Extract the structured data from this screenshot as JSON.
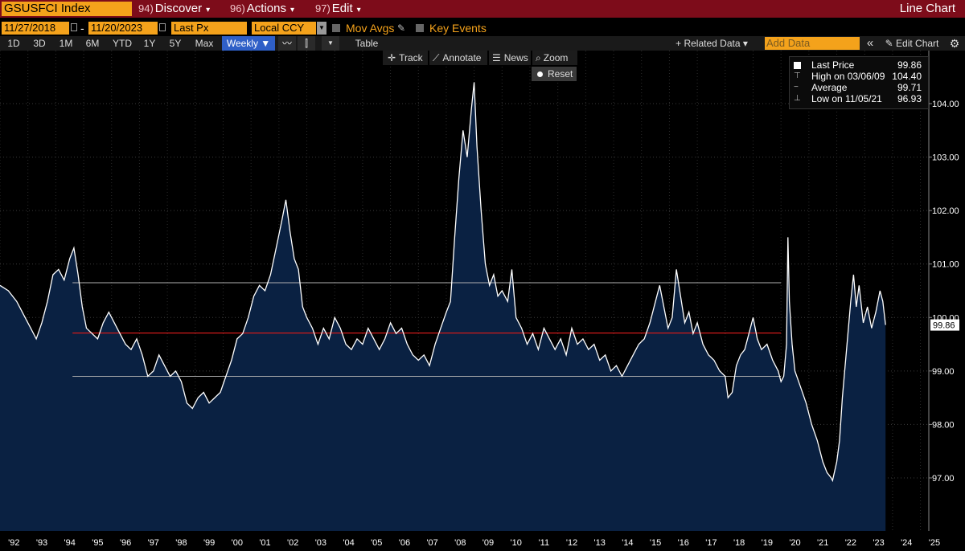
{
  "header": {
    "ticker": "GSUSFCI Index",
    "menus": [
      {
        "num": "94)",
        "label": "Discover"
      },
      {
        "num": "96)",
        "label": "Actions"
      },
      {
        "num": "97)",
        "label": "Edit"
      }
    ],
    "chart_type_label": "Line Chart"
  },
  "controls": {
    "start_date": "11/27/2018",
    "end_date": "11/20/2023",
    "date_sep": "-",
    "field": "Last Px",
    "currency": "Local CCY",
    "mov_avgs": "Mov Avgs",
    "key_events": "Key Events"
  },
  "toolbar": {
    "periods": [
      "1D",
      "3D",
      "1M",
      "6M",
      "YTD",
      "1Y",
      "5Y",
      "Max"
    ],
    "frequency": "Weekly ▼",
    "table": "Table",
    "related_data": "+ Related Data ▾",
    "add_data_placeholder": "Add Data",
    "collapse": "«",
    "edit_chart": "Edit Chart",
    "track": "Track",
    "annotate": "Annotate",
    "news": "News",
    "zoom": "Zoom",
    "reset": "Reset"
  },
  "legend": {
    "last_label": "Last Price",
    "last_value": "99.86",
    "high_label": "High on 03/06/09",
    "high_value": "104.40",
    "avg_label": "Average",
    "avg_value": "99.71",
    "low_label": "Low on 11/05/21",
    "low_value": "96.93"
  },
  "colors": {
    "accent": "#f4a21b",
    "header_bg": "#7d0c1a",
    "area_fill": "#0a2142",
    "line": "#ffffff",
    "average_line": "#d01a1a",
    "band_line": "#b0b0b0"
  },
  "chart_data": {
    "type": "area",
    "series_name": "GSUSFCI Index",
    "xlim": [
      1992.0,
      2025.3
    ],
    "ylim": [
      96.0,
      105.0
    ],
    "yticks": [
      97.0,
      98.0,
      99.0,
      100.0,
      101.0,
      102.0,
      103.0,
      104.0
    ],
    "ytick_labels": [
      "97.00",
      "98.00",
      "99.00",
      "100.00",
      "101.00",
      "102.00",
      "103.00",
      "104.00"
    ],
    "xtick_labels": [
      "'92",
      "'93",
      "'94",
      "'95",
      "'96",
      "'97",
      "'98",
      "'99",
      "'00",
      "'01",
      "'02",
      "'03",
      "'04",
      "'05",
      "'06",
      "'07",
      "'08",
      "'09",
      "'10",
      "'11",
      "'12",
      "'13",
      "'14",
      "'15",
      "'16",
      "'17",
      "'18",
      "'19",
      "'20",
      "'21",
      "'22",
      "'23",
      "'24",
      "'25"
    ],
    "last_value_tag": "99.86",
    "average": 99.71,
    "band_upper": 100.65,
    "band_lower": 98.9,
    "band_range": [
      1994.6,
      2020.0
    ],
    "points": [
      [
        1992.0,
        100.6
      ],
      [
        1992.3,
        100.5
      ],
      [
        1992.6,
        100.3
      ],
      [
        1992.9,
        100.0
      ],
      [
        1993.1,
        99.8
      ],
      [
        1993.3,
        99.6
      ],
      [
        1993.5,
        99.9
      ],
      [
        1993.7,
        100.3
      ],
      [
        1993.9,
        100.8
      ],
      [
        1994.1,
        100.9
      ],
      [
        1994.3,
        100.7
      ],
      [
        1994.5,
        101.1
      ],
      [
        1994.65,
        101.3
      ],
      [
        1994.8,
        100.8
      ],
      [
        1994.95,
        100.2
      ],
      [
        1995.1,
        99.8
      ],
      [
        1995.3,
        99.7
      ],
      [
        1995.5,
        99.6
      ],
      [
        1995.7,
        99.9
      ],
      [
        1995.9,
        100.1
      ],
      [
        1996.1,
        99.9
      ],
      [
        1996.3,
        99.7
      ],
      [
        1996.5,
        99.5
      ],
      [
        1996.7,
        99.4
      ],
      [
        1996.9,
        99.6
      ],
      [
        1997.1,
        99.3
      ],
      [
        1997.3,
        98.9
      ],
      [
        1997.5,
        99.0
      ],
      [
        1997.7,
        99.3
      ],
      [
        1997.9,
        99.1
      ],
      [
        1998.1,
        98.9
      ],
      [
        1998.3,
        99.0
      ],
      [
        1998.5,
        98.8
      ],
      [
        1998.7,
        98.4
      ],
      [
        1998.9,
        98.3
      ],
      [
        1999.1,
        98.5
      ],
      [
        1999.3,
        98.6
      ],
      [
        1999.5,
        98.4
      ],
      [
        1999.7,
        98.5
      ],
      [
        1999.9,
        98.6
      ],
      [
        2000.1,
        98.9
      ],
      [
        2000.3,
        99.2
      ],
      [
        2000.5,
        99.6
      ],
      [
        2000.7,
        99.7
      ],
      [
        2000.9,
        100.0
      ],
      [
        2001.1,
        100.4
      ],
      [
        2001.3,
        100.6
      ],
      [
        2001.5,
        100.5
      ],
      [
        2001.7,
        100.8
      ],
      [
        2001.9,
        101.3
      ],
      [
        2002.1,
        101.8
      ],
      [
        2002.25,
        102.2
      ],
      [
        2002.4,
        101.6
      ],
      [
        2002.55,
        101.1
      ],
      [
        2002.7,
        100.9
      ],
      [
        2002.85,
        100.2
      ],
      [
        2003.0,
        100.0
      ],
      [
        2003.2,
        99.8
      ],
      [
        2003.4,
        99.5
      ],
      [
        2003.6,
        99.8
      ],
      [
        2003.8,
        99.6
      ],
      [
        2004.0,
        100.0
      ],
      [
        2004.2,
        99.8
      ],
      [
        2004.4,
        99.5
      ],
      [
        2004.6,
        99.4
      ],
      [
        2004.8,
        99.6
      ],
      [
        2005.0,
        99.5
      ],
      [
        2005.2,
        99.8
      ],
      [
        2005.4,
        99.6
      ],
      [
        2005.6,
        99.4
      ],
      [
        2005.8,
        99.6
      ],
      [
        2006.0,
        99.9
      ],
      [
        2006.2,
        99.7
      ],
      [
        2006.4,
        99.8
      ],
      [
        2006.6,
        99.5
      ],
      [
        2006.8,
        99.3
      ],
      [
        2007.0,
        99.2
      ],
      [
        2007.2,
        99.3
      ],
      [
        2007.4,
        99.1
      ],
      [
        2007.6,
        99.5
      ],
      [
        2007.8,
        99.8
      ],
      [
        2008.0,
        100.1
      ],
      [
        2008.15,
        100.3
      ],
      [
        2008.3,
        101.5
      ],
      [
        2008.45,
        102.6
      ],
      [
        2008.6,
        103.5
      ],
      [
        2008.75,
        103.0
      ],
      [
        2008.9,
        103.9
      ],
      [
        2009.0,
        104.4
      ],
      [
        2009.1,
        103.2
      ],
      [
        2009.25,
        102.0
      ],
      [
        2009.4,
        101.0
      ],
      [
        2009.55,
        100.6
      ],
      [
        2009.7,
        100.8
      ],
      [
        2009.85,
        100.4
      ],
      [
        2010.0,
        100.5
      ],
      [
        2010.2,
        100.3
      ],
      [
        2010.35,
        100.9
      ],
      [
        2010.5,
        100.0
      ],
      [
        2010.7,
        99.8
      ],
      [
        2010.9,
        99.5
      ],
      [
        2011.1,
        99.7
      ],
      [
        2011.3,
        99.4
      ],
      [
        2011.5,
        99.8
      ],
      [
        2011.7,
        99.6
      ],
      [
        2011.9,
        99.4
      ],
      [
        2012.1,
        99.6
      ],
      [
        2012.3,
        99.3
      ],
      [
        2012.5,
        99.8
      ],
      [
        2012.7,
        99.5
      ],
      [
        2012.9,
        99.6
      ],
      [
        2013.1,
        99.4
      ],
      [
        2013.3,
        99.5
      ],
      [
        2013.5,
        99.2
      ],
      [
        2013.7,
        99.3
      ],
      [
        2013.9,
        99.0
      ],
      [
        2014.1,
        99.1
      ],
      [
        2014.3,
        98.9
      ],
      [
        2014.5,
        99.1
      ],
      [
        2014.7,
        99.3
      ],
      [
        2014.9,
        99.5
      ],
      [
        2015.1,
        99.6
      ],
      [
        2015.3,
        99.9
      ],
      [
        2015.5,
        100.3
      ],
      [
        2015.65,
        100.6
      ],
      [
        2015.8,
        100.2
      ],
      [
        2015.95,
        99.8
      ],
      [
        2016.1,
        100.0
      ],
      [
        2016.25,
        100.9
      ],
      [
        2016.4,
        100.4
      ],
      [
        2016.55,
        99.9
      ],
      [
        2016.7,
        100.1
      ],
      [
        2016.85,
        99.7
      ],
      [
        2017.0,
        99.9
      ],
      [
        2017.2,
        99.5
      ],
      [
        2017.4,
        99.3
      ],
      [
        2017.6,
        99.2
      ],
      [
        2017.8,
        99.0
      ],
      [
        2018.0,
        98.9
      ],
      [
        2018.1,
        98.5
      ],
      [
        2018.25,
        98.6
      ],
      [
        2018.4,
        99.1
      ],
      [
        2018.55,
        99.3
      ],
      [
        2018.7,
        99.4
      ],
      [
        2018.85,
        99.7
      ],
      [
        2019.0,
        100.0
      ],
      [
        2019.15,
        99.6
      ],
      [
        2019.3,
        99.4
      ],
      [
        2019.5,
        99.5
      ],
      [
        2019.7,
        99.2
      ],
      [
        2019.9,
        99.0
      ],
      [
        2020.0,
        98.8
      ],
      [
        2020.1,
        98.9
      ],
      [
        2020.2,
        99.5
      ],
      [
        2020.25,
        101.5
      ],
      [
        2020.3,
        100.3
      ],
      [
        2020.4,
        99.5
      ],
      [
        2020.5,
        99.0
      ],
      [
        2020.7,
        98.7
      ],
      [
        2020.9,
        98.4
      ],
      [
        2021.1,
        98.0
      ],
      [
        2021.3,
        97.7
      ],
      [
        2021.5,
        97.3
      ],
      [
        2021.65,
        97.1
      ],
      [
        2021.8,
        97.0
      ],
      [
        2021.85,
        96.95
      ],
      [
        2022.0,
        97.3
      ],
      [
        2022.1,
        97.7
      ],
      [
        2022.2,
        98.5
      ],
      [
        2022.35,
        99.4
      ],
      [
        2022.5,
        100.3
      ],
      [
        2022.6,
        100.8
      ],
      [
        2022.7,
        100.2
      ],
      [
        2022.8,
        100.6
      ],
      [
        2022.95,
        99.9
      ],
      [
        2023.1,
        100.2
      ],
      [
        2023.25,
        99.8
      ],
      [
        2023.4,
        100.1
      ],
      [
        2023.55,
        100.5
      ],
      [
        2023.65,
        100.3
      ],
      [
        2023.75,
        99.86
      ]
    ]
  }
}
